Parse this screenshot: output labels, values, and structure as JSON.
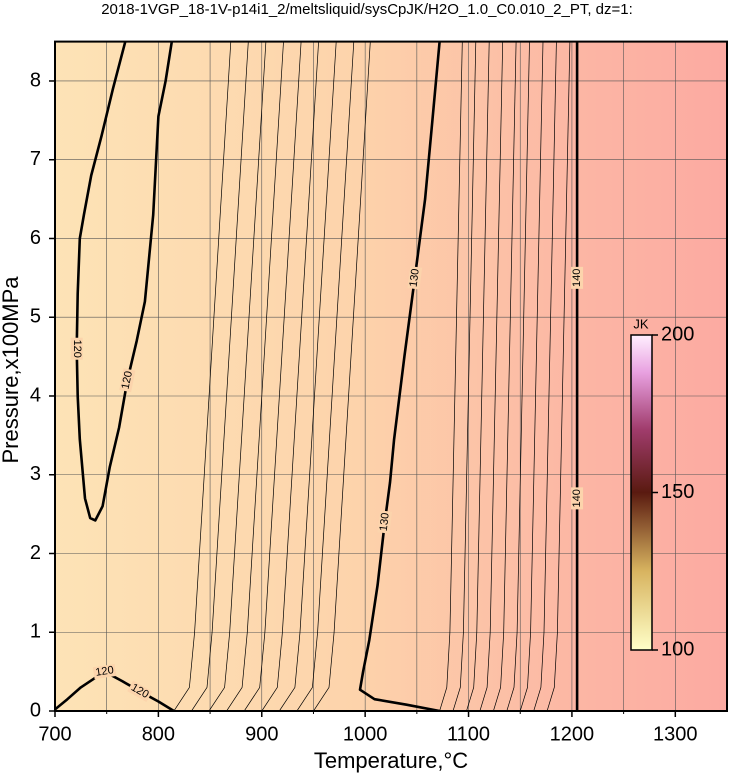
{
  "chart_data": {
    "type": "contour",
    "title": "2018-1VGP_18-1V-p14i1_2/meltsliquid/sysCpJK/H2O_1.0_C0.010_2_PT, dz=1:",
    "x_label": "Temperature,°C",
    "y_label": "Pressure,x100MPa",
    "xlim": [
      700,
      1350
    ],
    "ylim": [
      0,
      8.5
    ],
    "xticks": [
      700,
      800,
      900,
      1000,
      1100,
      1200,
      1300
    ],
    "yticks": [
      0,
      1,
      2,
      3,
      4,
      5,
      6,
      7,
      8
    ],
    "xminor": [
      750,
      850,
      950,
      1050,
      1150,
      1250
    ],
    "grid": true,
    "contours": [
      {
        "level": 120,
        "x": [
          768,
          756,
          745,
          735,
          728,
          724,
          722,
          721,
          722,
          724,
          729,
          734,
          739,
          746,
          753,
          762,
          770,
          779,
          787,
          795,
          800,
          807,
          813
        ],
        "y": [
          8.5,
          7.9,
          7.3,
          6.8,
          6.3,
          6.0,
          5.3,
          4.6,
          4.0,
          3.45,
          2.7,
          2.45,
          2.42,
          2.6,
          3.1,
          3.6,
          4.2,
          4.7,
          5.2,
          6.3,
          7.55,
          8.0,
          8.5
        ]
      },
      {
        "level": 120,
        "x": [
          700,
          712,
          725,
          748,
          765,
          782,
          800,
          815
        ],
        "y": [
          0.02,
          0.15,
          0.3,
          0.5,
          0.38,
          0.25,
          0.12,
          0
        ]
      },
      {
        "level": 130,
        "x": [
          1072,
          1065,
          1058,
          1048,
          1038,
          1028,
          1024,
          1019,
          1012,
          1004,
          998,
          995,
          1009,
          1040,
          1072
        ],
        "y": [
          8.5,
          7.5,
          6.5,
          5.5,
          4.5,
          3.45,
          2.9,
          2.4,
          1.6,
          0.9,
          0.5,
          0.27,
          0.15,
          0.08,
          0
        ]
      },
      {
        "level": 140,
        "x": [
          1205,
          1205,
          1205,
          1205
        ],
        "y": [
          0,
          2.7,
          5.5,
          8.5
        ]
      }
    ],
    "thin_contours": [
      {
        "level": 121,
        "x": [
          815,
          830,
          835,
          870
        ],
        "y": [
          0,
          0.3,
          1,
          8.5
        ]
      },
      {
        "level": 122,
        "x": [
          832,
          847,
          852,
          887
        ],
        "y": [
          0,
          0.3,
          1,
          8.5
        ]
      },
      {
        "level": 123,
        "x": [
          849,
          864,
          869,
          904
        ],
        "y": [
          0,
          0.3,
          1,
          8.5
        ]
      },
      {
        "level": 124,
        "x": [
          866,
          881,
          886,
          921
        ],
        "y": [
          0,
          0.3,
          1,
          8.5
        ]
      },
      {
        "level": 125,
        "x": [
          883,
          898,
          903,
          938
        ],
        "y": [
          0,
          0.3,
          1,
          8.5
        ]
      },
      {
        "level": 126,
        "x": [
          900,
          915,
          920,
          955
        ],
        "y": [
          0,
          0.3,
          1,
          8.5
        ]
      },
      {
        "level": 127,
        "x": [
          917,
          932,
          937,
          972
        ],
        "y": [
          0,
          0.3,
          1,
          8.5
        ]
      },
      {
        "level": 128,
        "x": [
          934,
          949,
          954,
          989
        ],
        "y": [
          0,
          0.3,
          1,
          8.5
        ]
      },
      {
        "level": 129,
        "x": [
          950,
          965,
          970,
          1005
        ],
        "y": [
          0,
          0.3,
          1,
          8.5
        ]
      },
      {
        "level": 131,
        "x": [
          1072,
          1079,
          1082,
          1094
        ],
        "y": [
          0,
          0.3,
          1,
          8.5
        ]
      },
      {
        "level": 132,
        "x": [
          1085,
          1092,
          1095,
          1107
        ],
        "y": [
          0,
          0.3,
          1,
          8.5
        ]
      },
      {
        "level": 133,
        "x": [
          1098,
          1105,
          1108,
          1120
        ],
        "y": [
          0,
          0.3,
          1,
          8.5
        ]
      },
      {
        "level": 134,
        "x": [
          1111,
          1118,
          1121,
          1133
        ],
        "y": [
          0,
          0.3,
          1,
          8.5
        ]
      },
      {
        "level": 135,
        "x": [
          1124,
          1131,
          1134,
          1146
        ],
        "y": [
          0,
          0.3,
          1,
          8.5
        ]
      },
      {
        "level": 136,
        "x": [
          1137,
          1144,
          1147,
          1159
        ],
        "y": [
          0,
          0.3,
          1,
          8.5
        ]
      },
      {
        "level": 137,
        "x": [
          1150,
          1157,
          1160,
          1172
        ],
        "y": [
          0,
          0.3,
          1,
          8.5
        ]
      },
      {
        "level": 138,
        "x": [
          1163,
          1170,
          1173,
          1185
        ],
        "y": [
          0,
          0.3,
          1,
          8.5
        ]
      },
      {
        "level": 139,
        "x": [
          1176,
          1183,
          1186,
          1198
        ],
        "y": [
          0,
          0.3,
          1,
          8.5
        ]
      }
    ],
    "colorbar": {
      "label": "JK",
      "lim": [
        100,
        200
      ],
      "ticks": [
        100,
        150,
        200
      ]
    }
  }
}
